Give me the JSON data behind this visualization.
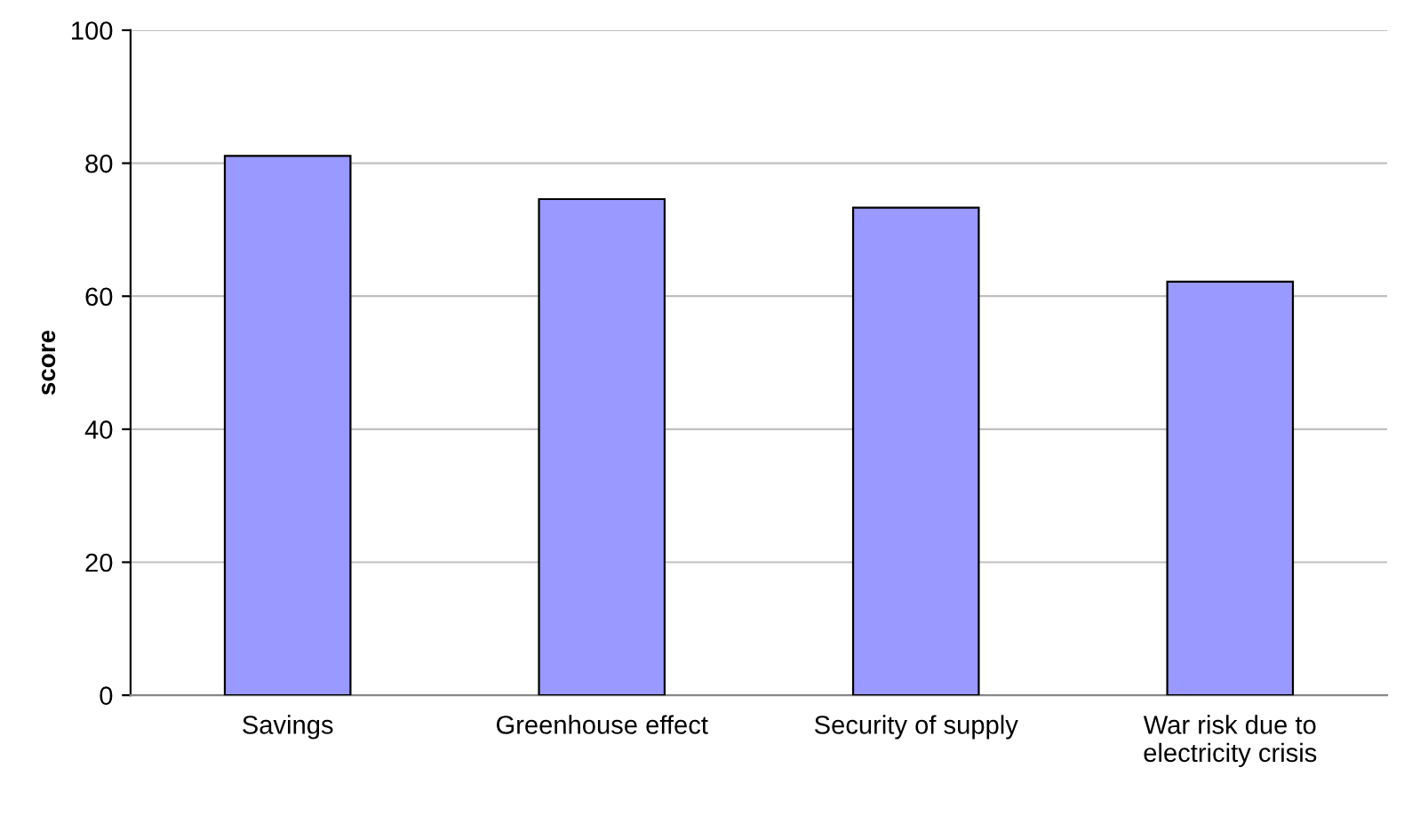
{
  "chart_data": {
    "type": "bar",
    "ylabel": "score",
    "categories": [
      "Savings",
      "Greenhouse effect",
      "Security of supply",
      "War risk due to\nelectricity crisis"
    ],
    "values": [
      81.1,
      74.6,
      73.3,
      62.2
    ],
    "color": "#9999ff",
    "ylim": [
      0,
      100
    ],
    "yticks": [
      0,
      20,
      40,
      60,
      80,
      100
    ],
    "grid": "y"
  }
}
